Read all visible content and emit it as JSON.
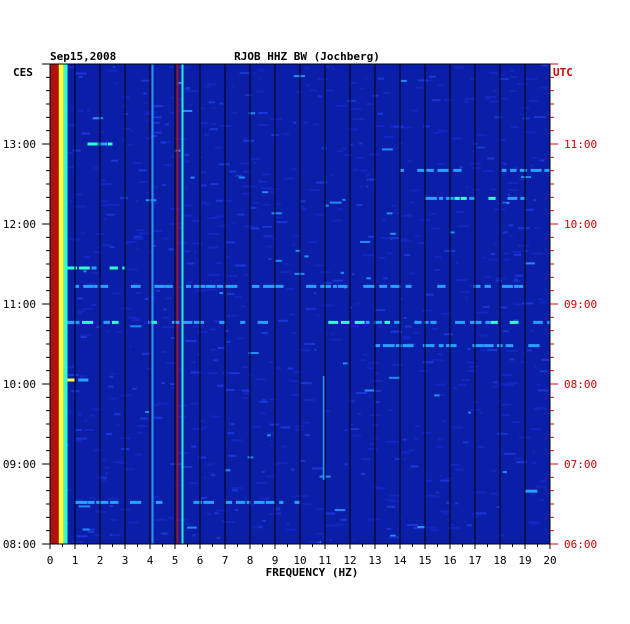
{
  "chart_data": {
    "type": "heatmap",
    "date": "Sep15,2008",
    "station": "RJOB HHZ BW (Jochberg)",
    "left_zone": "CES",
    "right_zone": "UTC",
    "xlabel": "FREQUENCY (HZ)",
    "xlim": [
      0,
      20
    ],
    "x_ticks": [
      "0",
      "1",
      "2",
      "3",
      "4",
      "5",
      "6",
      "7",
      "8",
      "9",
      "10",
      "11",
      "12",
      "13",
      "14",
      "15",
      "16",
      "17",
      "18",
      "19",
      "20"
    ],
    "ylim_hours": [
      8.0,
      14.0
    ],
    "left_time_ticks": [
      {
        "hour": 8,
        "label": "08:00"
      },
      {
        "hour": 9,
        "label": "09:00"
      },
      {
        "hour": 10,
        "label": "10:00"
      },
      {
        "hour": 11,
        "label": "11:00"
      },
      {
        "hour": 12,
        "label": "12:00"
      },
      {
        "hour": 13,
        "label": "13:00"
      }
    ],
    "right_time_ticks": [
      {
        "hour": 8,
        "label": "06:00"
      },
      {
        "hour": 9,
        "label": "07:00"
      },
      {
        "hour": 10,
        "label": "08:00"
      },
      {
        "hour": 11,
        "label": "09:00"
      },
      {
        "hour": 12,
        "label": "10:00"
      },
      {
        "hour": 13,
        "label": "11:00"
      }
    ],
    "grid": true,
    "colors": {
      "background": "#0a1ea8",
      "low": "#1428c8",
      "mid": "#28a0ff",
      "high": "#30ffd0",
      "peak": "#ffff40",
      "band_red": "#b01010",
      "line_red": "#cc0000"
    },
    "features": [
      {
        "kind": "band",
        "freq_range": [
          0.0,
          0.35
        ],
        "level": "red"
      },
      {
        "kind": "band",
        "freq_range": [
          0.35,
          0.55
        ],
        "level": "peak"
      },
      {
        "kind": "band",
        "freq_range": [
          0.55,
          0.7
        ],
        "level": "high"
      },
      {
        "kind": "vline",
        "freq": 5.1,
        "level": "red"
      },
      {
        "kind": "vline",
        "freq": 5.3,
        "level": "high"
      },
      {
        "kind": "vline",
        "freq": 4.1,
        "level": "mid"
      },
      {
        "kind": "vline",
        "freq": 10.95,
        "level": "mid",
        "hour_range": [
          8.8,
          10.1
        ]
      },
      {
        "kind": "hstreak",
        "hour": 10.77,
        "freq_range": [
          0.7,
          20
        ],
        "level": "high"
      },
      {
        "kind": "hstreak",
        "hour": 10.48,
        "freq_range": [
          13,
          20
        ],
        "level": "mid"
      },
      {
        "kind": "hstreak",
        "hour": 10.05,
        "freq_range": [
          0.7,
          2
        ],
        "level": "peak"
      },
      {
        "kind": "hstreak",
        "hour": 11.45,
        "freq_range": [
          0.7,
          3
        ],
        "level": "high"
      },
      {
        "kind": "hstreak",
        "hour": 12.32,
        "freq_range": [
          15,
          19
        ],
        "level": "high"
      },
      {
        "kind": "hstreak",
        "hour": 12.67,
        "freq_range": [
          14,
          20
        ],
        "level": "mid"
      },
      {
        "kind": "hstreak",
        "hour": 13.0,
        "freq_range": [
          1.5,
          2.5
        ],
        "level": "high"
      },
      {
        "kind": "hstreak",
        "hour": 11.22,
        "freq_range": [
          1,
          20
        ],
        "level": "mid"
      },
      {
        "kind": "hstreak",
        "hour": 8.52,
        "freq_range": [
          1,
          10
        ],
        "level": "mid"
      },
      {
        "kind": "hstreak",
        "hour": 8.66,
        "freq_range": [
          19,
          20
        ],
        "level": "mid"
      }
    ]
  }
}
